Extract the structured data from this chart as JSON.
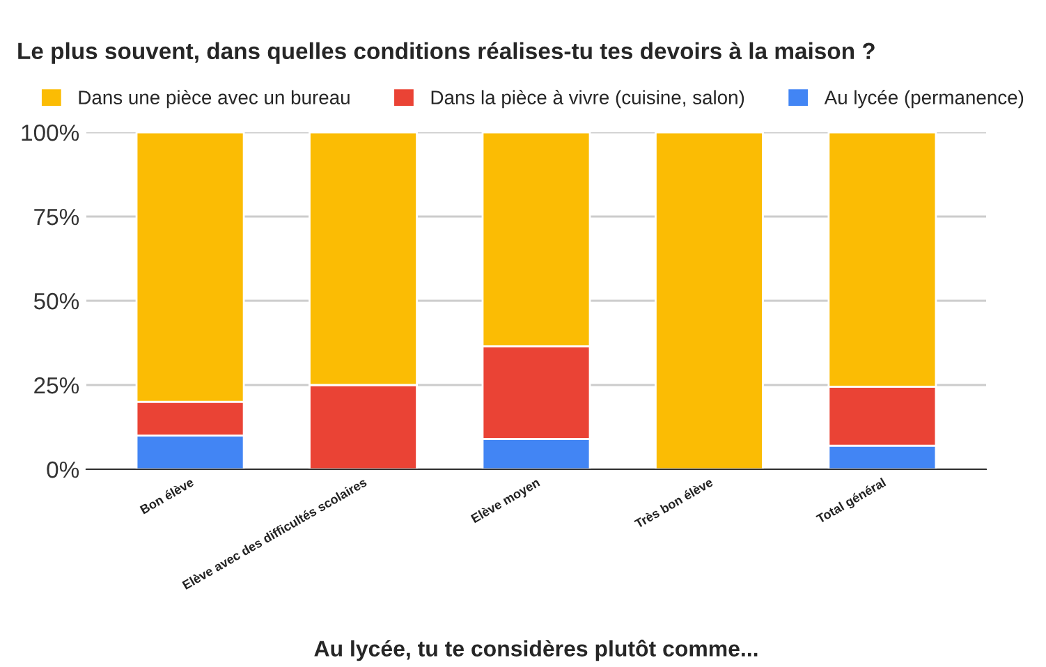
{
  "chart_data": {
    "type": "bar",
    "stacked": true,
    "title": "Le plus souvent, dans quelles conditions réalises-tu tes devoirs à la maison ?",
    "xlabel": "Au lycée, tu te considères plutôt comme...",
    "categories": [
      "Bon élève",
      "Elève avec des difficultés scolaires",
      "Elève moyen",
      "Très bon élève",
      "Total général"
    ],
    "series": [
      {
        "name": "Au lycée (permanence)",
        "color": "#4285f4",
        "values": [
          10,
          0,
          9,
          0,
          7
        ]
      },
      {
        "name": "Dans la pièce à vivre (cuisine, salon)",
        "color": "#ea4335",
        "values": [
          10,
          25,
          27.5,
          0,
          17.5
        ]
      },
      {
        "name": "Dans une pièce avec un bureau",
        "color": "#fbbc04",
        "values": [
          80,
          75,
          63.5,
          100,
          75.5
        ]
      }
    ],
    "ylim": [
      0,
      100
    ],
    "yticks": [
      {
        "value": 0,
        "label": "0%"
      },
      {
        "value": 25,
        "label": "25%"
      },
      {
        "value": 50,
        "label": "50%"
      },
      {
        "value": 75,
        "label": "75%"
      },
      {
        "value": 100,
        "label": "100%"
      }
    ],
    "grid": "y",
    "legend": "top"
  }
}
